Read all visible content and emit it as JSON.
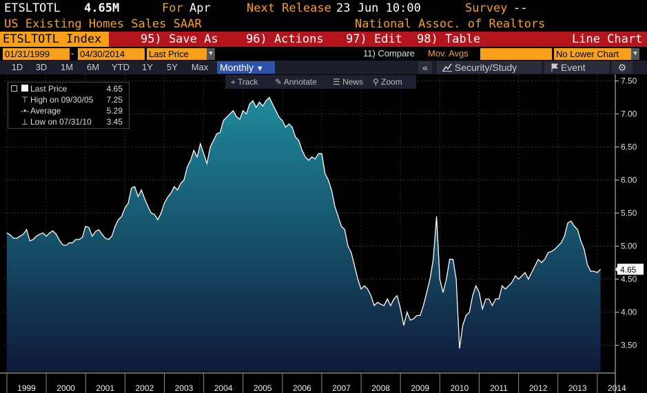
{
  "header": {
    "ticker": "ETSLTOTL",
    "value": "4.65M",
    "for_label": "For",
    "for_value": "Apr",
    "next_release_label": "Next Release",
    "next_release_value": "23 Jun 10:00",
    "survey_label": "Survey",
    "survey_value": "--",
    "description": "US Existing Homes Sales SAAR",
    "source": "National Assoc. of Realtors"
  },
  "menu": {
    "index_label": "ETSLTOTL Index",
    "save_as": "95) Save As",
    "actions": "96) Actions",
    "edit": "97) Edit",
    "table": "98) Table",
    "chart_type": "Line Chart"
  },
  "controls": {
    "start_date": "01/31/1999",
    "separator": "-",
    "end_date": "04/30/2014",
    "field": "Last Price",
    "compare": "11) Compare",
    "mov_avgs": "Mov. Avgs",
    "lower_chart": "No Lower Chart"
  },
  "periods": [
    "1D",
    "3D",
    "1M",
    "6M",
    "YTD",
    "1Y",
    "5Y",
    "Max"
  ],
  "frequency": "Monthly",
  "collapse_icon": "«",
  "security_study": "Security/Study",
  "event": "Event",
  "settings_icon": "gear-icon",
  "tools": [
    "Track",
    "Annotate",
    "News",
    "Zoom"
  ],
  "legend": [
    {
      "label": "Last Price",
      "value": "4.65"
    },
    {
      "label": "High on 09/30/05",
      "value": "7.25"
    },
    {
      "label": "Average",
      "value": "5.29"
    },
    {
      "label": "Low on 07/31/10",
      "value": "3.45"
    }
  ],
  "chart_data": {
    "type": "area",
    "title": "",
    "xlabel": "",
    "ylabel": "",
    "x_start": "1999-01",
    "frequency": "monthly",
    "x_ticks": [
      "1999",
      "2000",
      "2001",
      "2002",
      "2003",
      "2004",
      "2005",
      "2006",
      "2007",
      "2008",
      "2009",
      "2010",
      "2011",
      "2012",
      "2013",
      "2014"
    ],
    "y_ticks": [
      "3.50",
      "4.00",
      "4.50",
      "5.00",
      "5.50",
      "6.00",
      "6.50",
      "7.00",
      "7.50"
    ],
    "ylim": [
      3.1,
      7.6
    ],
    "last_value_label": "4.65",
    "colors": {
      "fill_top": "#1e8a9c",
      "fill_bottom": "#101a3a",
      "line": "#ffffff",
      "background": "#000000"
    },
    "values": [
      5.2,
      5.17,
      5.12,
      5.12,
      5.15,
      5.18,
      5.25,
      5.08,
      5.1,
      5.15,
      5.18,
      5.2,
      5.15,
      5.2,
      5.23,
      5.18,
      5.09,
      5.02,
      5.01,
      5.05,
      5.05,
      5.1,
      5.1,
      5.13,
      5.3,
      5.28,
      5.15,
      5.22,
      5.25,
      5.18,
      5.12,
      5.1,
      5.15,
      5.3,
      5.4,
      5.45,
      5.58,
      5.65,
      5.88,
      5.9,
      5.75,
      5.85,
      5.72,
      5.6,
      5.5,
      5.48,
      5.4,
      5.5,
      5.65,
      5.74,
      5.8,
      5.9,
      5.85,
      5.95,
      6.0,
      6.2,
      6.3,
      6.45,
      6.35,
      6.55,
      6.4,
      6.25,
      6.5,
      6.6,
      6.7,
      6.72,
      6.9,
      6.95,
      7.0,
      7.05,
      6.96,
      6.92,
      7.05,
      7.0,
      7.15,
      7.2,
      7.1,
      7.18,
      7.12,
      7.2,
      7.25,
      7.15,
      7.05,
      6.95,
      6.9,
      6.8,
      6.85,
      6.8,
      6.65,
      6.6,
      6.45,
      6.35,
      6.3,
      6.35,
      6.32,
      6.4,
      6.4,
      6.1,
      6.0,
      5.85,
      5.6,
      5.45,
      5.3,
      5.25,
      5.0,
      4.9,
      4.7,
      4.5,
      4.35,
      4.4,
      4.35,
      4.25,
      4.1,
      4.15,
      4.12,
      4.1,
      4.2,
      4.1,
      4.2,
      4.25,
      4.05,
      3.8,
      4.0,
      3.88,
      3.9,
      3.95,
      3.95,
      4.1,
      4.3,
      4.5,
      4.8,
      5.45,
      4.5,
      4.3,
      4.5,
      4.8,
      4.8,
      4.5,
      3.45,
      3.8,
      3.95,
      4.0,
      4.25,
      4.4,
      4.3,
      4.05,
      4.2,
      4.2,
      4.1,
      4.2,
      4.2,
      4.4,
      4.35,
      4.4,
      4.45,
      4.55,
      4.5,
      4.55,
      4.6,
      4.5,
      4.6,
      4.7,
      4.8,
      4.75,
      4.8,
      4.9,
      4.92,
      4.95,
      5.0,
      5.05,
      5.15,
      5.35,
      5.38,
      5.3,
      5.25,
      5.08,
      4.95,
      4.72,
      4.62,
      4.62,
      4.6,
      4.65
    ]
  }
}
